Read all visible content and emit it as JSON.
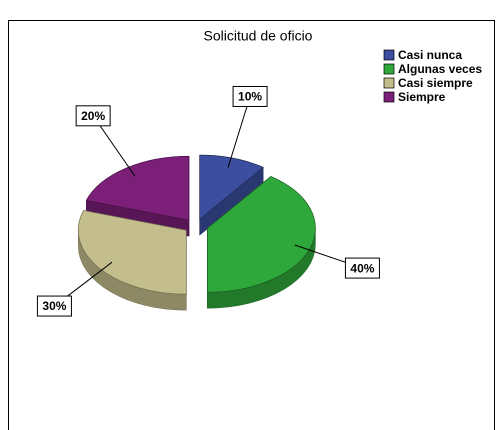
{
  "chart_data": {
    "type": "pie",
    "title": "Solicitud de oficio",
    "categories": [
      "Casi nunca",
      "Algunas veces",
      "Casi siempre",
      "Siempre"
    ],
    "values": [
      10,
      40,
      30,
      20
    ],
    "value_labels": [
      "10%",
      "40%",
      "30%",
      "20%"
    ],
    "colors": [
      "#3b4e9f",
      "#2fa83b",
      "#c4be8c",
      "#7c1f79"
    ],
    "legend": "top-right"
  }
}
